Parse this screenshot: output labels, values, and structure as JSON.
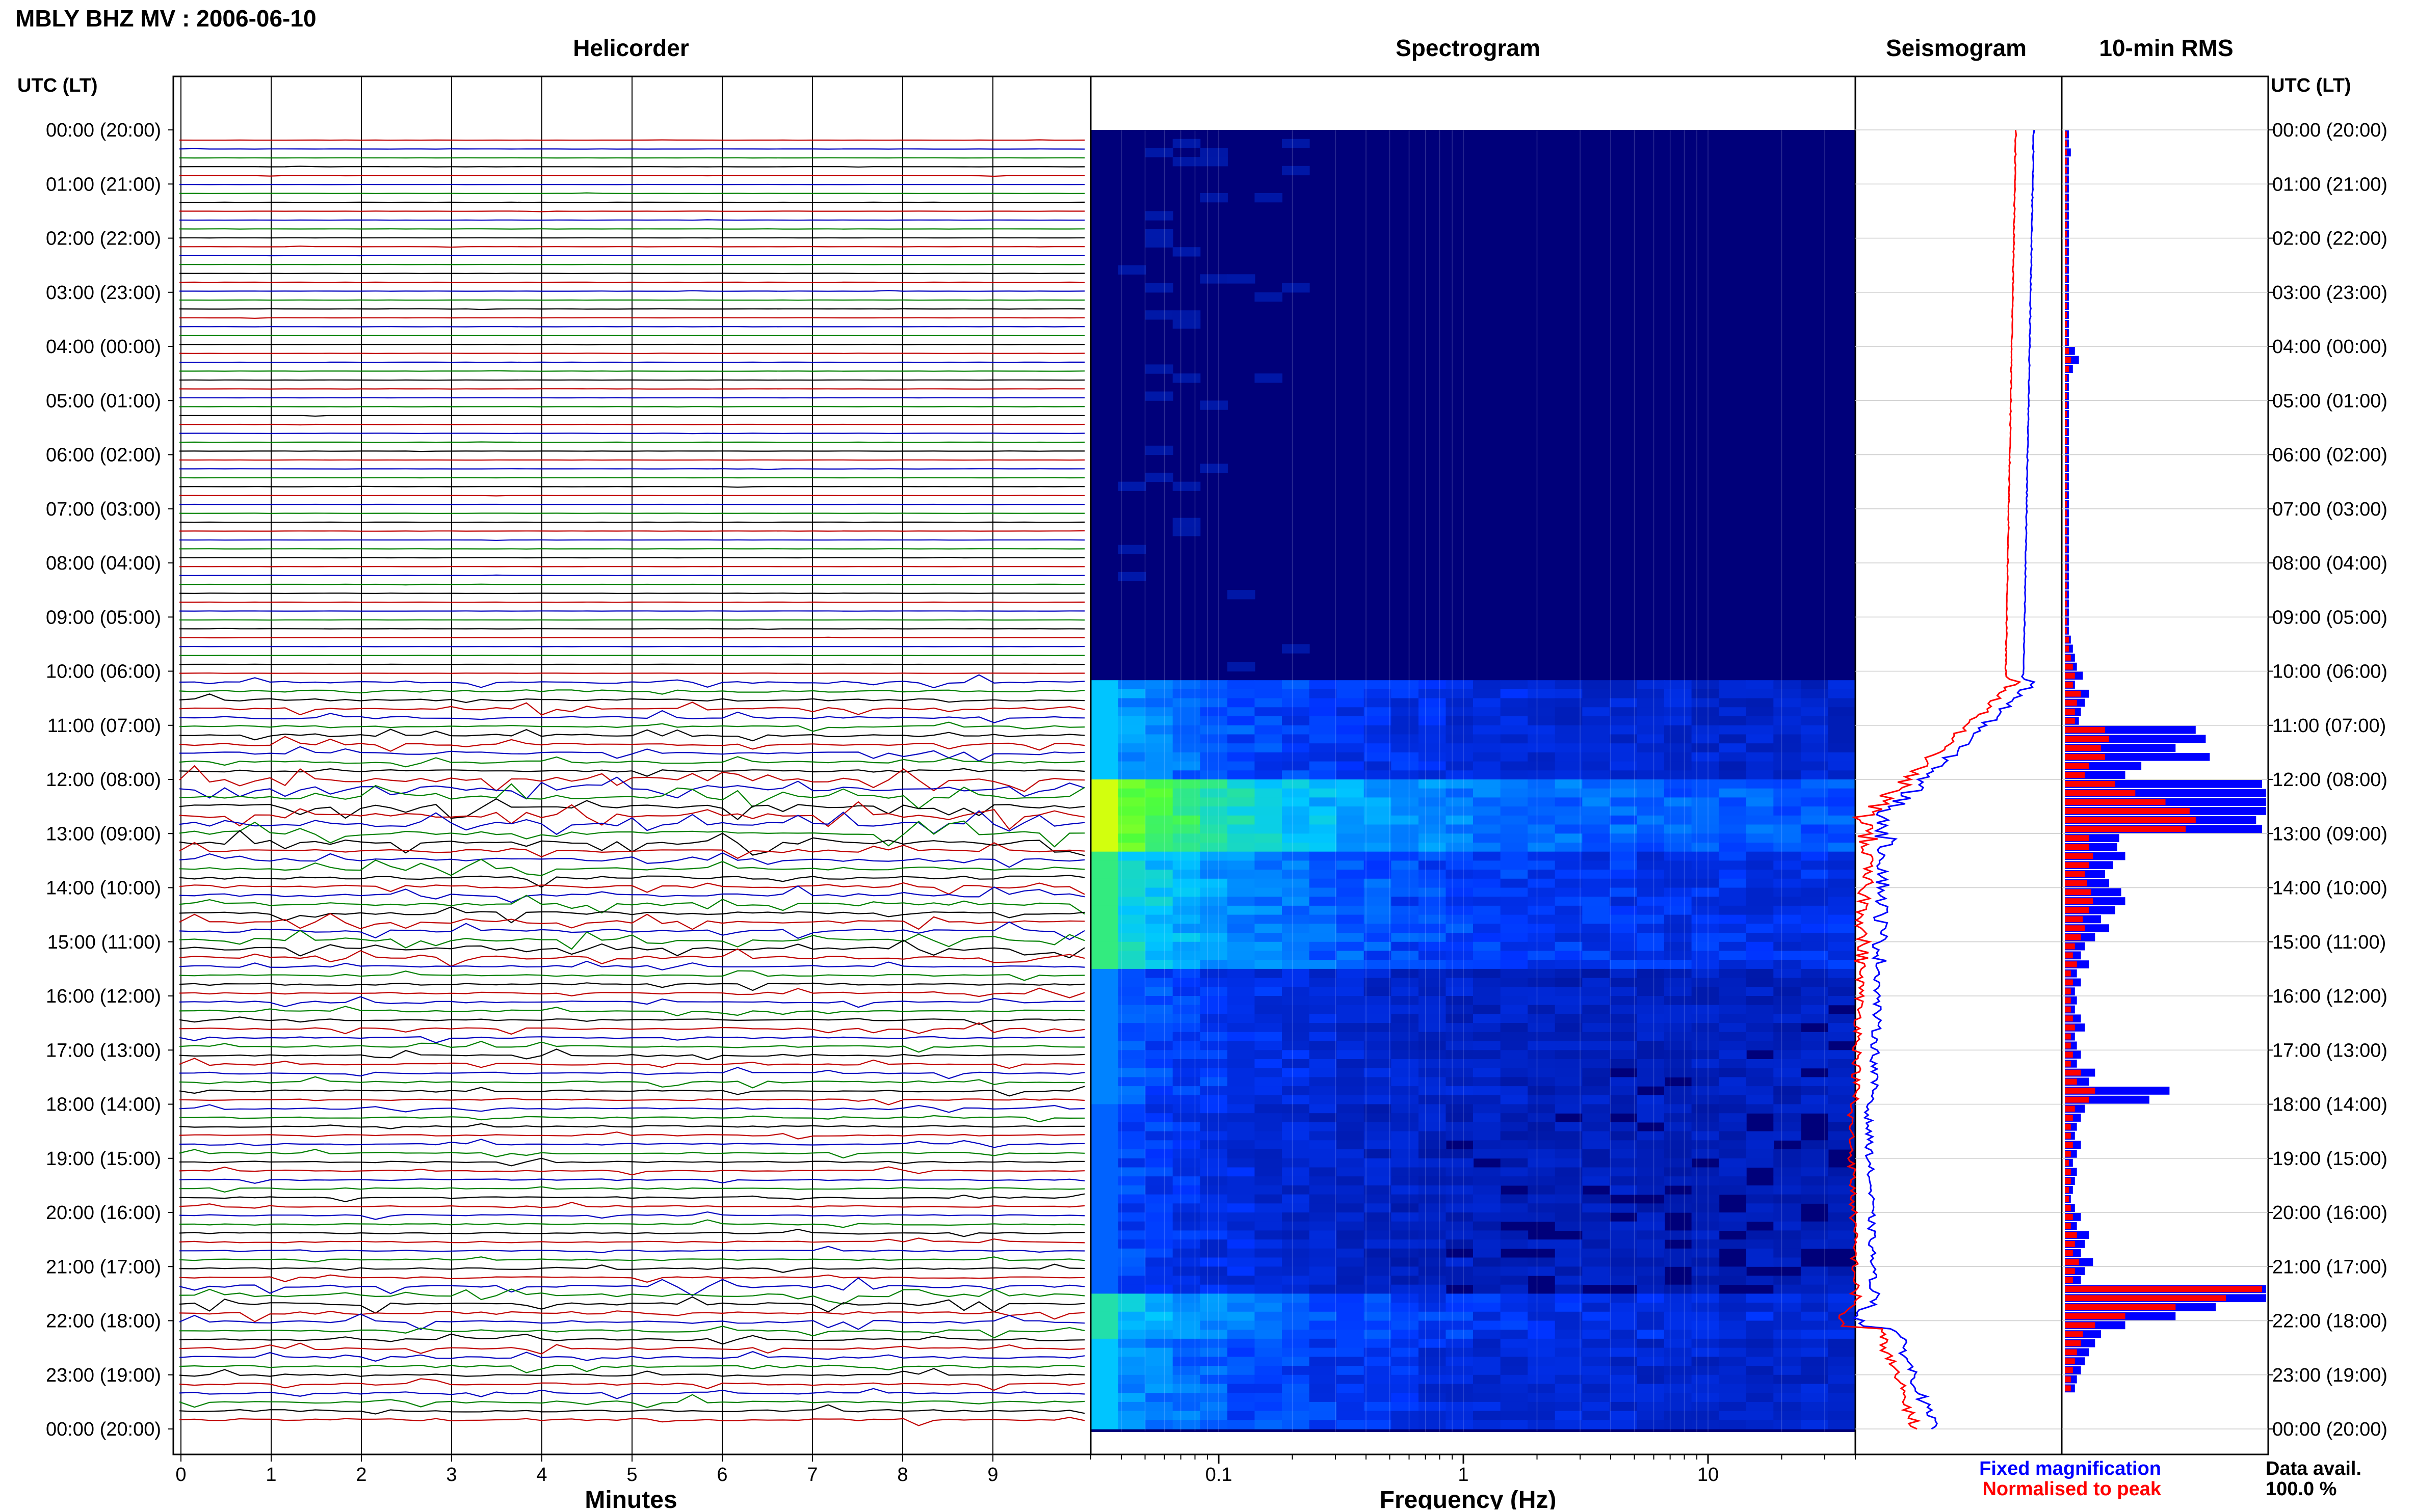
{
  "header": {
    "title": "MBLY BHZ MV : 2006-06-10",
    "utc_label_left": "UTC (LT)",
    "utc_label_right": "UTC (LT)"
  },
  "panels": {
    "helicorder_title": "Helicorder",
    "spectrogram_title": "Spectrogram",
    "seismogram_title": "Seismogram",
    "rms_title": "10-min RMS"
  },
  "time_labels": [
    "00:00 (20:00)",
    "01:00 (21:00)",
    "02:00 (22:00)",
    "03:00 (23:00)",
    "04:00 (00:00)",
    "05:00 (01:00)",
    "06:00 (02:00)",
    "07:00 (03:00)",
    "08:00 (04:00)",
    "09:00 (05:00)",
    "10:00 (06:00)",
    "11:00 (07:00)",
    "12:00 (08:00)",
    "13:00 (09:00)",
    "14:00 (10:00)",
    "15:00 (11:00)",
    "16:00 (12:00)",
    "17:00 (13:00)",
    "18:00 (14:00)",
    "19:00 (15:00)",
    "20:00 (16:00)",
    "21:00 (17:00)",
    "22:00 (18:00)",
    "23:00 (19:00)",
    "00:00 (20:00)"
  ],
  "helicorder": {
    "xlabel": "Minutes",
    "ticks": [
      "0",
      "1",
      "2",
      "3",
      "4",
      "5",
      "6",
      "7",
      "8",
      "9"
    ],
    "line_colors": [
      "#c00000",
      "#0000c0",
      "#008000",
      "#000000"
    ]
  },
  "spectrogram": {
    "xlabel": "Frequency (Hz)",
    "ticks": [
      "0.1",
      "1",
      "10"
    ],
    "scale": "log"
  },
  "legend": {
    "fixed": "Fixed magnification",
    "normalised": "Normalised to peak",
    "fixed_color": "#0000ff",
    "normalised_color": "#ff0000"
  },
  "data_avail": {
    "label": "Data avail.",
    "value": "100.0 %"
  },
  "chart_data": {
    "type": "bar",
    "title": "10-min RMS",
    "categories_note": "10-min bins, hours 0-24 UTC",
    "series": [
      {
        "name": "Fixed magnification",
        "values": [
          0.02,
          0.02,
          0.03,
          0.02,
          0.02,
          0.02,
          0.02,
          0.02,
          0.02,
          0.02,
          0.02,
          0.02,
          0.02,
          0.02,
          0.02,
          0.02,
          0.02,
          0.02,
          0.02,
          0.02,
          0.02,
          0.02,
          0.02,
          0.02,
          0.05,
          0.07,
          0.04,
          0.02,
          0.02,
          0.02,
          0.02,
          0.02,
          0.02,
          0.02,
          0.02,
          0.02,
          0.02,
          0.02,
          0.02,
          0.02,
          0.02,
          0.02,
          0.02,
          0.02,
          0.02,
          0.02,
          0.02,
          0.02,
          0.02,
          0.02,
          0.02,
          0.02,
          0.02,
          0.02,
          0.02,
          0.02,
          0.03,
          0.04,
          0.05,
          0.06,
          0.09,
          0.05,
          0.12,
          0.1,
          0.08,
          0.07,
          0.65,
          0.7,
          0.55,
          0.72,
          0.38,
          0.3,
          0.98,
          1.0,
          1.0,
          1.0,
          0.95,
          0.98,
          0.27,
          0.26,
          0.3,
          0.24,
          0.2,
          0.22,
          0.28,
          0.3,
          0.25,
          0.18,
          0.22,
          0.15,
          0.1,
          0.08,
          0.12,
          0.06,
          0.08,
          0.05,
          0.06,
          0.05,
          0.08,
          0.1,
          0.05,
          0.06,
          0.08,
          0.06,
          0.15,
          0.12,
          0.52,
          0.42,
          0.1,
          0.08,
          0.06,
          0.05,
          0.08,
          0.06,
          0.04,
          0.06,
          0.05,
          0.04,
          0.03,
          0.05,
          0.08,
          0.06,
          0.12,
          0.1,
          0.08,
          0.14,
          0.1,
          0.08,
          1.0,
          1.0,
          0.75,
          0.55,
          0.3,
          0.18,
          0.15,
          0.12,
          0.1,
          0.08,
          0.06,
          0.05
        ]
      },
      {
        "name": "Normalised to peak",
        "values": [
          0.01,
          0.01,
          0.01,
          0.01,
          0.01,
          0.01,
          0.01,
          0.01,
          0.01,
          0.01,
          0.01,
          0.01,
          0.01,
          0.01,
          0.01,
          0.01,
          0.01,
          0.01,
          0.01,
          0.01,
          0.01,
          0.01,
          0.01,
          0.01,
          0.02,
          0.03,
          0.02,
          0.01,
          0.01,
          0.01,
          0.01,
          0.01,
          0.01,
          0.01,
          0.01,
          0.01,
          0.01,
          0.01,
          0.01,
          0.01,
          0.01,
          0.01,
          0.01,
          0.01,
          0.01,
          0.01,
          0.01,
          0.01,
          0.01,
          0.01,
          0.01,
          0.01,
          0.01,
          0.01,
          0.01,
          0.01,
          0.02,
          0.02,
          0.03,
          0.04,
          0.05,
          0.04,
          0.08,
          0.06,
          0.05,
          0.05,
          0.2,
          0.22,
          0.18,
          0.2,
          0.12,
          0.1,
          0.25,
          0.35,
          0.5,
          0.62,
          0.65,
          0.6,
          0.12,
          0.12,
          0.14,
          0.12,
          0.1,
          0.11,
          0.13,
          0.14,
          0.12,
          0.09,
          0.1,
          0.08,
          0.05,
          0.04,
          0.06,
          0.03,
          0.04,
          0.03,
          0.03,
          0.03,
          0.04,
          0.05,
          0.03,
          0.03,
          0.04,
          0.03,
          0.08,
          0.06,
          0.15,
          0.12,
          0.05,
          0.04,
          0.03,
          0.03,
          0.04,
          0.03,
          0.02,
          0.03,
          0.03,
          0.02,
          0.02,
          0.03,
          0.04,
          0.03,
          0.06,
          0.05,
          0.04,
          0.07,
          0.05,
          0.04,
          0.98,
          0.8,
          0.55,
          0.3,
          0.15,
          0.09,
          0.08,
          0.06,
          0.05,
          0.04,
          0.03,
          0.03
        ]
      }
    ]
  }
}
